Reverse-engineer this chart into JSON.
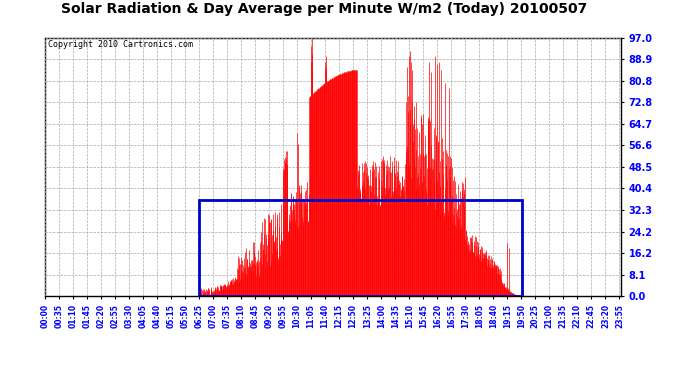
{
  "title": "Solar Radiation & Day Average per Minute W/m2 (Today) 20100507",
  "copyright": "Copyright 2010 Cartronics.com",
  "yticks": [
    0.0,
    8.1,
    16.2,
    24.2,
    32.3,
    40.4,
    48.5,
    56.6,
    64.7,
    72.8,
    80.8,
    88.9,
    97.0
  ],
  "ymax": 97.0,
  "ymin": 0.0,
  "bar_color": "#FF0000",
  "avg_box_color": "#0000CC",
  "bg_color": "#FFFFFF",
  "grid_color": "#AAAAAA",
  "avg_value": 36.2,
  "sunrise_min": 385,
  "sunset_min": 1192,
  "num_minutes": 1440,
  "tick_interval": 35,
  "title_fontsize": 10,
  "copyright_fontsize": 6,
  "ytick_fontsize": 7,
  "xtick_fontsize": 5.5
}
